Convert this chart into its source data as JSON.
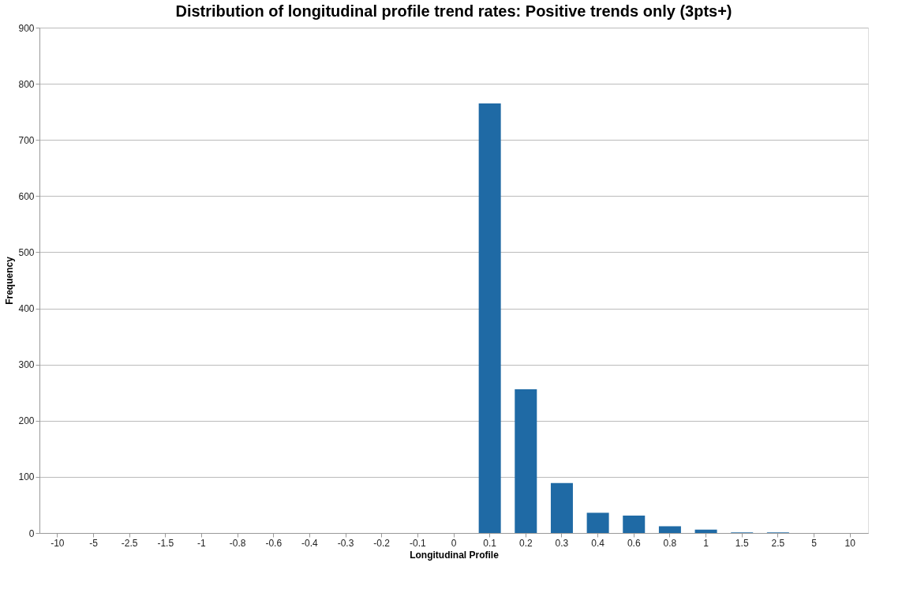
{
  "chart_data": {
    "type": "bar",
    "title": "Distribution of longitudinal profile trend rates: Positive trends only (3pts+)",
    "xlabel": "Longitudinal Profile",
    "ylabel": "Frequency",
    "categories": [
      "-10",
      "-5",
      "-2.5",
      "-1.5",
      "-1",
      "-0.8",
      "-0.6",
      "-0.4",
      "-0.3",
      "-0.2",
      "-0.1",
      "0",
      "0.1",
      "0.2",
      "0.3",
      "0.4",
      "0.6",
      "0.8",
      "1",
      "1.5",
      "2.5",
      "5",
      "10"
    ],
    "values": [
      0,
      0,
      0,
      0,
      0,
      0,
      0,
      0,
      0,
      0,
      0,
      0,
      765,
      256,
      89,
      36,
      31,
      12,
      6,
      1,
      1,
      0,
      0
    ],
    "color": "#1f6aa5",
    "ylim": [
      0,
      900
    ],
    "yticks": [
      0,
      100,
      200,
      300,
      400,
      500,
      600,
      700,
      800,
      900
    ],
    "grid": "y"
  }
}
